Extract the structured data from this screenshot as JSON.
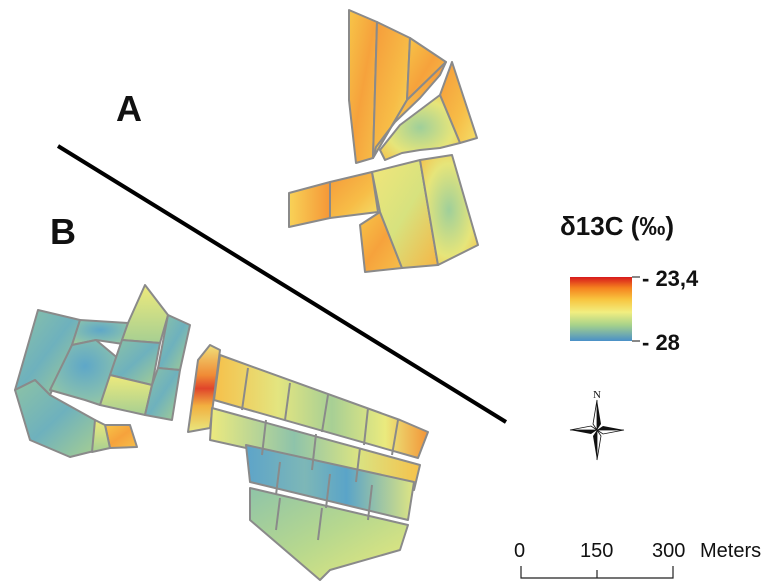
{
  "labels": {
    "zone_a": "A",
    "zone_b": "B"
  },
  "legend": {
    "title": "δ13C (‰)",
    "max_label": "- 23,4",
    "min_label": "- 28",
    "colors": [
      "#d7191c",
      "#f5821f",
      "#f8c53f",
      "#f2ee80",
      "#a7d28a",
      "#5aa6c8",
      "#4a90c8"
    ]
  },
  "north_arrow": {
    "label": "N"
  },
  "scale_bar": {
    "ticks": [
      "0",
      "150",
      "300"
    ],
    "unit": "Meters"
  }
}
